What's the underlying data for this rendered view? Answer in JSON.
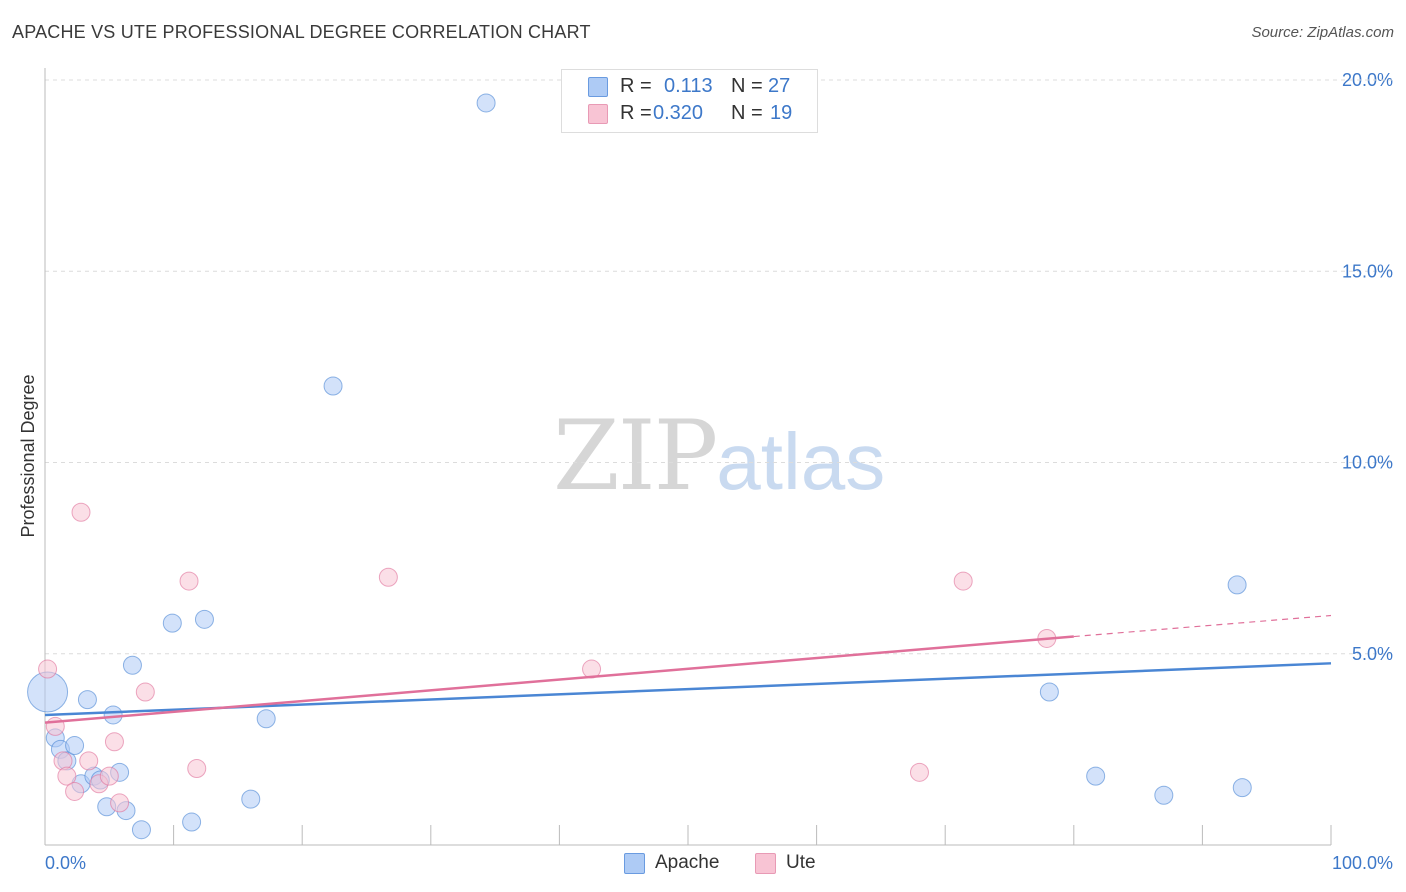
{
  "title": "APACHE VS UTE PROFESSIONAL DEGREE CORRELATION CHART",
  "source": "Source: ZipAtlas.com",
  "watermark": {
    "zip": "ZIP",
    "atlas": "atlas"
  },
  "legend": {
    "rows": [
      {
        "r_label": "R =",
        "r_value": "0.113",
        "n_label": "N =",
        "n_value": "27",
        "color": "#aecbf5"
      },
      {
        "r_label": "R =",
        "r_value": "0.320",
        "n_label": "N =",
        "n_value": "19",
        "color": "#f8c4d4"
      }
    ]
  },
  "bottom_legend": [
    {
      "label": "Apache",
      "color": "#aecbf5"
    },
    {
      "label": "Ute",
      "color": "#f8c4d4"
    }
  ],
  "chart_data": {
    "type": "scatter",
    "title": "APACHE VS UTE PROFESSIONAL DEGREE CORRELATION CHART",
    "xlabel": "",
    "ylabel": "Professional Degree",
    "xlim": [
      0,
      100
    ],
    "ylim": [
      0,
      20
    ],
    "x_tick_labels": [
      "0.0%",
      "100.0%"
    ],
    "y_ticks": [
      5,
      10,
      15,
      20
    ],
    "y_tick_labels": [
      "5.0%",
      "10.0%",
      "15.0%",
      "20.0%"
    ],
    "grid": true,
    "series": [
      {
        "name": "Apache",
        "color": "#4a86d4",
        "fill": "#aecbf5",
        "trend": {
          "x0": 0,
          "y0": 3.4,
          "x1": 100,
          "y1": 4.75
        },
        "points": [
          {
            "x": 0.2,
            "y": 4.0,
            "big": true
          },
          {
            "x": 0.8,
            "y": 2.8
          },
          {
            "x": 1.2,
            "y": 2.5
          },
          {
            "x": 1.7,
            "y": 2.2
          },
          {
            "x": 2.3,
            "y": 2.6
          },
          {
            "x": 2.8,
            "y": 1.6
          },
          {
            "x": 3.3,
            "y": 3.8
          },
          {
            "x": 3.8,
            "y": 1.8
          },
          {
            "x": 4.3,
            "y": 1.7
          },
          {
            "x": 4.8,
            "y": 1.0
          },
          {
            "x": 5.3,
            "y": 3.4
          },
          {
            "x": 5.8,
            "y": 1.9
          },
          {
            "x": 6.3,
            "y": 0.9
          },
          {
            "x": 6.8,
            "y": 4.7
          },
          {
            "x": 7.5,
            "y": 0.4
          },
          {
            "x": 9.9,
            "y": 5.8
          },
          {
            "x": 11.4,
            "y": 0.6
          },
          {
            "x": 12.4,
            "y": 5.9
          },
          {
            "x": 16.0,
            "y": 1.2
          },
          {
            "x": 17.2,
            "y": 3.3
          },
          {
            "x": 22.4,
            "y": 12.0
          },
          {
            "x": 34.3,
            "y": 19.4
          },
          {
            "x": 78.1,
            "y": 4.0
          },
          {
            "x": 81.7,
            "y": 1.8
          },
          {
            "x": 87.0,
            "y": 1.3
          },
          {
            "x": 92.7,
            "y": 6.8
          },
          {
            "x": 93.1,
            "y": 1.5
          }
        ]
      },
      {
        "name": "Ute",
        "color": "#e0709a",
        "fill": "#f8c4d4",
        "trend": {
          "x0": 0,
          "y0": 3.2,
          "x1": 80,
          "y1": 5.45,
          "dashed_x1": 100,
          "dashed_y1": 6.0
        },
        "points": [
          {
            "x": 0.2,
            "y": 4.6
          },
          {
            "x": 0.8,
            "y": 3.1
          },
          {
            "x": 1.4,
            "y": 2.2
          },
          {
            "x": 1.7,
            "y": 1.8
          },
          {
            "x": 2.3,
            "y": 1.4
          },
          {
            "x": 2.8,
            "y": 8.7
          },
          {
            "x": 3.4,
            "y": 2.2
          },
          {
            "x": 4.2,
            "y": 1.6
          },
          {
            "x": 5.0,
            "y": 1.8
          },
          {
            "x": 5.4,
            "y": 2.7
          },
          {
            "x": 5.8,
            "y": 1.1
          },
          {
            "x": 7.8,
            "y": 4.0
          },
          {
            "x": 11.2,
            "y": 6.9
          },
          {
            "x": 11.8,
            "y": 2.0
          },
          {
            "x": 26.7,
            "y": 7.0
          },
          {
            "x": 42.5,
            "y": 4.6
          },
          {
            "x": 68.0,
            "y": 1.9
          },
          {
            "x": 71.4,
            "y": 6.9
          },
          {
            "x": 77.9,
            "y": 5.4
          }
        ]
      }
    ]
  }
}
